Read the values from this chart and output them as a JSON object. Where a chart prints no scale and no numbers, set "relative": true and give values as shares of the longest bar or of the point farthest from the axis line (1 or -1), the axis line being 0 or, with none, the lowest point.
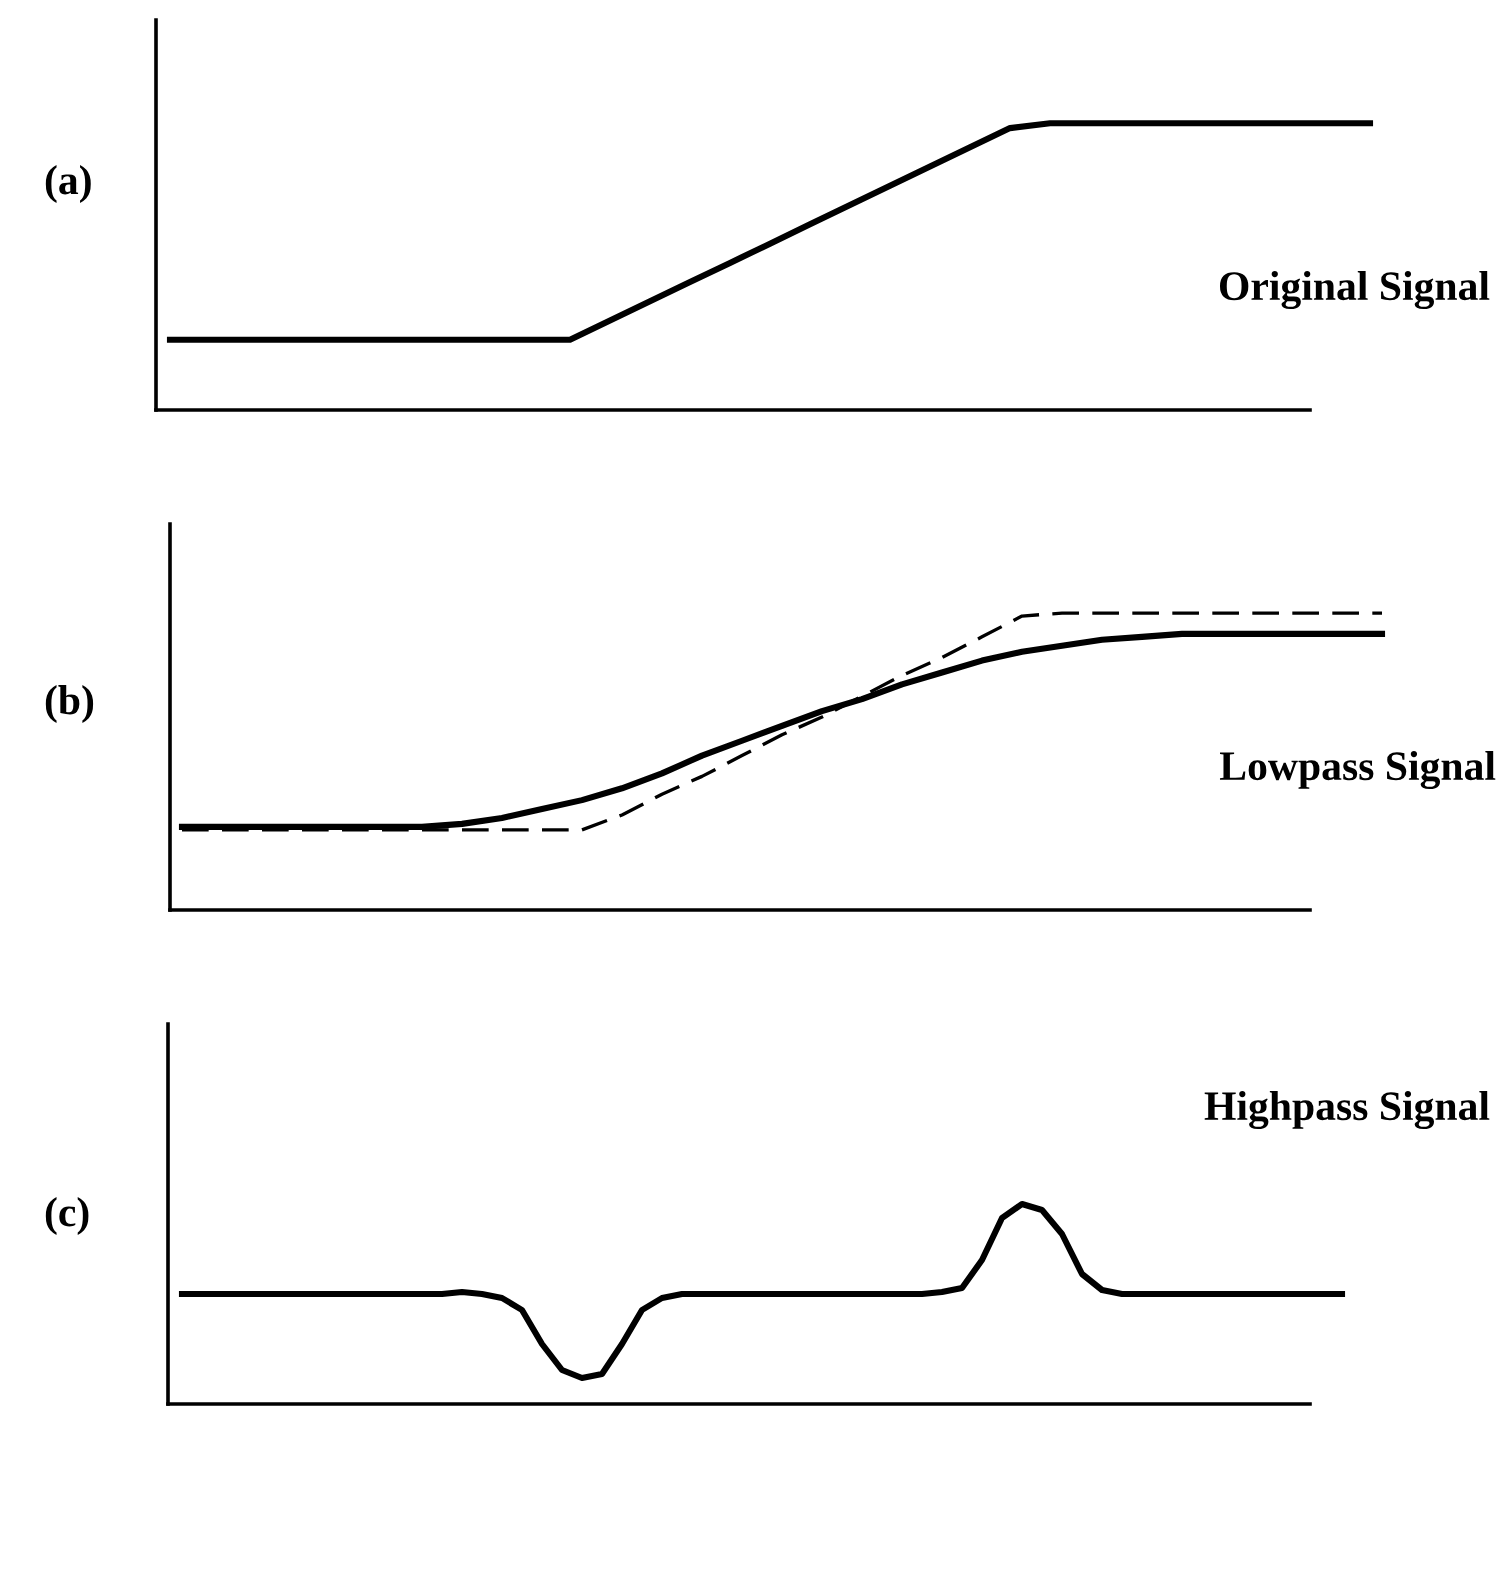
{
  "chart_data": [
    {
      "type": "line",
      "relative": true,
      "annotations": [
        "(a)",
        "Original Signal"
      ],
      "categories": [
        null,
        null,
        null,
        null,
        null,
        null,
        null,
        null,
        null,
        null,
        null,
        null,
        null,
        null,
        null,
        null,
        null,
        null,
        null,
        null,
        null,
        null,
        null,
        null,
        null,
        null,
        null,
        null,
        null,
        null,
        null
      ],
      "series": [
        {
          "color": "#000000",
          "line_style": "solid",
          "values": [
            0.245,
            0.245,
            0.245,
            0.245,
            0.245,
            0.245,
            0.245,
            0.245,
            0.245,
            0.245,
            0.245,
            0.312,
            0.379,
            0.446,
            0.513,
            0.58,
            0.648,
            0.715,
            0.782,
            0.849,
            0.916,
            0.983,
            1,
            1,
            1,
            1,
            1,
            1,
            1,
            1,
            1
          ]
        }
      ]
    },
    {
      "type": "line",
      "relative": true,
      "annotations": [
        "(b)",
        "Lowpass Signal"
      ],
      "categories": [
        null,
        null,
        null,
        null,
        null,
        null,
        null,
        null,
        null,
        null,
        null,
        null,
        null,
        null,
        null,
        null,
        null,
        null,
        null,
        null,
        null,
        null,
        null,
        null,
        null,
        null,
        null,
        null,
        null,
        null,
        null
      ],
      "series": [
        {
          "color": "#000000",
          "line_style": "dashed",
          "values": [
            0.27,
            0.27,
            0.27,
            0.27,
            0.27,
            0.27,
            0.27,
            0.27,
            0.27,
            0.27,
            0.27,
            0.32,
            0.39,
            0.45,
            0.52,
            0.59,
            0.65,
            0.72,
            0.79,
            0.85,
            0.92,
            0.99,
            1,
            1,
            1,
            1,
            1,
            1,
            1,
            1,
            1
          ]
        },
        {
          "color": "#000000",
          "line_style": "solid",
          "values": [
            0.28,
            0.28,
            0.28,
            0.28,
            0.28,
            0.28,
            0.28,
            0.29,
            0.31,
            0.34,
            0.37,
            0.41,
            0.46,
            0.52,
            0.57,
            0.62,
            0.67,
            0.71,
            0.76,
            0.8,
            0.84,
            0.87,
            0.89,
            0.91,
            0.92,
            0.93,
            0.93,
            0.93,
            0.93,
            0.93,
            0.93
          ]
        }
      ]
    },
    {
      "type": "line",
      "relative": true,
      "annotations": [
        "(c)",
        "Highpass Signal"
      ],
      "categories": [
        null,
        null,
        null,
        null,
        null,
        null,
        null,
        null,
        null,
        null,
        null,
        null,
        null,
        null,
        null,
        null,
        null,
        null,
        null,
        null,
        null,
        null,
        null,
        null,
        null,
        null,
        null,
        null,
        null,
        null,
        null,
        null,
        null,
        null,
        null,
        null,
        null,
        null,
        null,
        null,
        null,
        null,
        null,
        null,
        null,
        null,
        null,
        null,
        null,
        null,
        null,
        null,
        null,
        null,
        null,
        null,
        null,
        null,
        null
      ],
      "series": [
        {
          "color": "#000000",
          "line_style": "solid",
          "values": [
            0.55,
            0.55,
            0.55,
            0.55,
            0.55,
            0.55,
            0.55,
            0.55,
            0.55,
            0.55,
            0.55,
            0.55,
            0.55,
            0.55,
            0.56,
            0.55,
            0.53,
            0.47,
            0.3,
            0.17,
            0.13,
            0.15,
            0.3,
            0.47,
            0.53,
            0.55,
            0.55,
            0.55,
            0.55,
            0.55,
            0.55,
            0.55,
            0.55,
            0.55,
            0.55,
            0.55,
            0.55,
            0.55,
            0.56,
            0.58,
            0.72,
            0.93,
            1,
            0.97,
            0.85,
            0.65,
            0.57,
            0.55,
            0.55,
            0.55,
            0.55,
            0.55,
            0.55,
            0.55,
            0.55,
            0.55,
            0.55,
            0.55,
            0.55
          ]
        }
      ]
    }
  ]
}
